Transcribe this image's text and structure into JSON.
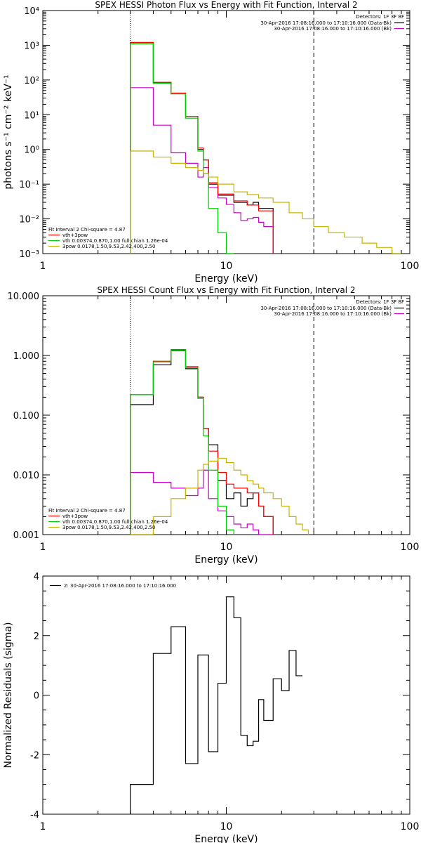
{
  "chart_data": [
    {
      "type": "line",
      "title": "SPEX HESSI Photon Flux vs Energy with Fit Function, Interval 2",
      "xlabel": "Energy (keV)",
      "ylabel": "photons s⁻¹ cm⁻² keV⁻¹",
      "xscale": "log",
      "yscale": "log",
      "xlim": [
        1,
        100
      ],
      "ylim": [
        0.001,
        10000
      ],
      "xticks": [
        {
          "v": 1,
          "label": "1"
        },
        {
          "v": 10,
          "label": "10"
        },
        {
          "v": 100,
          "label": "100"
        }
      ],
      "yticks": [
        {
          "v": 0.001,
          "label": "10⁻³"
        },
        {
          "v": 0.01,
          "label": "10⁻²"
        },
        {
          "v": 0.1,
          "label": "10⁻¹"
        },
        {
          "v": 1,
          "label": "10⁰"
        },
        {
          "v": 10,
          "label": "10¹"
        },
        {
          "v": 100,
          "label": "10²"
        },
        {
          "v": 1000,
          "label": "10³"
        },
        {
          "v": 10000,
          "label": "10⁴"
        }
      ],
      "vlines": [
        {
          "x": 3,
          "style": "dotted"
        },
        {
          "x": 30,
          "style": "dashed"
        }
      ],
      "legend_topright": {
        "header": "Detectors: 1F 3F 8F",
        "entries": [
          {
            "text": "30-Apr-2016 17:08:16.000 to 17:10:16.000 (Data-Bk)",
            "color": "#000000"
          },
          {
            "text": "30-Apr-2016 17:08:16.000 to 17:10:16.000 (Bk)",
            "color": "#cc00cc"
          }
        ]
      },
      "legend_bottomleft": {
        "header": "Fit Interval  2   Chi-square = 4.87",
        "entries": [
          {
            "text": "vth+3pow",
            "color": "#ff0000"
          },
          {
            "text": "vth 0.00374,0.870,1.00  full chian 1.26e-04",
            "color": "#00cc00"
          },
          {
            "text": "3pow 0.0178,1.50,9.53,2.42,400,2.50",
            "color": "#c8b400"
          }
        ]
      },
      "edges": [
        3,
        3.5,
        4,
        4.5,
        5,
        5.5,
        6,
        6.5,
        7,
        7.5,
        8,
        9,
        10,
        11,
        12,
        13,
        14,
        15,
        16,
        18,
        20,
        22,
        24,
        26,
        28,
        30,
        33,
        36,
        40,
        44,
        50,
        55,
        60,
        66,
        72,
        80,
        90
      ],
      "series": [
        {
          "name": "Data-Bk",
          "color": "#000000",
          "values": [
            1200,
            1200,
            85,
            85,
            40,
            40,
            8,
            8,
            1,
            0.5,
            0.1,
            0.048,
            0.048,
            0.03,
            0.03,
            0.025,
            0.03,
            0.02,
            0.02
          ]
        },
        {
          "name": "Bk",
          "color": "#cc00cc",
          "values": [
            60,
            60,
            5,
            5,
            0.8,
            0.8,
            0.4,
            0.4,
            0.16,
            0.3,
            0.08,
            0.04,
            0.026,
            0.015,
            0.009,
            0.01,
            0.011,
            0.008,
            0.006
          ]
        },
        {
          "name": "vth+3pow",
          "color": "#ff0000",
          "values": [
            1200,
            1200,
            85,
            85,
            42,
            42,
            9,
            9,
            1.1,
            0.5,
            0.11,
            0.052,
            0.052,
            0.033,
            0.033,
            0.025,
            0.025,
            0.017,
            0.017
          ]
        },
        {
          "name": "vth",
          "color": "#00cc00",
          "values": [
            1100,
            1100,
            80,
            80,
            40,
            40,
            8,
            8,
            0.9,
            0.2,
            0.02,
            0.004,
            0.0008
          ]
        },
        {
          "name": "3pow",
          "color": "#c8b400",
          "values": [
            0.9,
            0.9,
            0.6,
            0.6,
            0.4,
            0.4,
            0.3,
            0.3,
            0.25,
            0.2,
            0.16,
            0.1,
            0.1,
            0.06,
            0.06,
            0.05,
            0.05,
            0.04,
            0.04,
            0.03,
            0.03,
            0.015,
            0.015,
            0.01,
            0.01,
            0.006,
            0.006,
            0.004,
            0.004,
            0.003,
            0.003,
            0.002,
            0.002,
            0.0015,
            0.0015,
            0.001
          ]
        }
      ]
    },
    {
      "type": "line",
      "title": "SPEX HESSI Count Flux vs Energy with Fit Function, Interval 2",
      "xlabel": "Energy (keV)",
      "ylabel": "",
      "xscale": "log",
      "yscale": "log",
      "xlim": [
        1,
        100
      ],
      "ylim": [
        0.001,
        10
      ],
      "xticks": [
        {
          "v": 1,
          "label": "1"
        },
        {
          "v": 10,
          "label": "10"
        },
        {
          "v": 100,
          "label": "100"
        }
      ],
      "yticks": [
        {
          "v": 0.001,
          "label": "0.001"
        },
        {
          "v": 0.01,
          "label": "0.010"
        },
        {
          "v": 0.1,
          "label": "0.100"
        },
        {
          "v": 1,
          "label": "1.000"
        },
        {
          "v": 10,
          "label": "10.000"
        }
      ],
      "vlines": [
        {
          "x": 3,
          "style": "dotted"
        },
        {
          "x": 30,
          "style": "dashed"
        }
      ],
      "legend_topright": {
        "header": "Detectors: 1F 3F 8F",
        "entries": [
          {
            "text": "30-Apr-2016 17:08:16.000 to 17:10:16.000 (Data-Bk)",
            "color": "#000000"
          },
          {
            "text": "30-Apr-2016 17:08:16.000 to 17:10:16.000 (Bk)",
            "color": "#cc00cc"
          }
        ]
      },
      "legend_bottomleft": {
        "header": "Fit Interval  2   Chi-square = 4.87",
        "entries": [
          {
            "text": "vth+3pow",
            "color": "#ff0000"
          },
          {
            "text": "vth 0.00374,0.870,1.00  full chian 1.26e-04",
            "color": "#00cc00"
          },
          {
            "text": "3pow 0.0178,1.50,9.53,2.42,400,2.50",
            "color": "#c8b400"
          }
        ]
      },
      "edges": [
        3,
        3.5,
        4,
        4.5,
        5,
        5.5,
        6,
        6.5,
        7,
        7.5,
        8,
        9,
        10,
        11,
        12,
        13,
        14,
        15,
        16,
        18,
        20,
        22,
        24,
        26,
        28,
        30,
        33,
        36,
        40,
        44,
        50,
        55,
        60,
        66,
        72,
        80,
        90
      ],
      "series": [
        {
          "name": "Data-Bk",
          "color": "#000000",
          "values": [
            0.15,
            0.15,
            0.7,
            0.7,
            1.2,
            1.2,
            0.6,
            0.6,
            0.2,
            0.06,
            0.032,
            0.008,
            0.004,
            0.005,
            0.003,
            0.004,
            0.005,
            0.003,
            0.002
          ]
        },
        {
          "name": "Bk",
          "color": "#cc00cc",
          "values": [
            0.011,
            0.011,
            0.0075,
            0.0075,
            0.006,
            0.006,
            0.0045,
            0.0045,
            0.006,
            0.012,
            0.004,
            0.0025,
            0.002,
            0.0015,
            0.0013,
            0.0015,
            0.0012,
            0.001,
            0.001
          ]
        },
        {
          "name": "vth+3pow",
          "color": "#ff0000",
          "values": [
            0.22,
            0.22,
            0.8,
            0.8,
            1.25,
            1.25,
            0.65,
            0.65,
            0.2,
            0.06,
            0.025,
            0.011,
            0.007,
            0.006,
            0.006,
            0.005,
            0.005,
            0.003,
            0.002
          ]
        },
        {
          "name": "vth",
          "color": "#00cc00",
          "values": [
            0.22,
            0.22,
            0.78,
            0.78,
            1.22,
            1.22,
            0.62,
            0.62,
            0.19,
            0.045,
            0.012,
            0.003,
            0.0012
          ]
        },
        {
          "name": "3pow",
          "color": "#c8b400",
          "values": [
            0.0008,
            0.0008,
            0.002,
            0.002,
            0.004,
            0.004,
            0.006,
            0.006,
            0.012,
            0.015,
            0.017,
            0.019,
            0.016,
            0.012,
            0.01,
            0.008,
            0.007,
            0.006,
            0.005,
            0.004,
            0.003,
            0.002,
            0.0015,
            0.0012
          ]
        }
      ]
    },
    {
      "type": "line",
      "title": "",
      "xlabel": "Energy (keV)",
      "ylabel": "Normalized Residuals (sigma)",
      "xscale": "log",
      "yscale": "linear",
      "xlim": [
        1,
        100
      ],
      "ylim": [
        -4,
        4
      ],
      "xticks": [
        {
          "v": 1,
          "label": "1"
        },
        {
          "v": 10,
          "label": "10"
        },
        {
          "v": 100,
          "label": "100"
        }
      ],
      "yticks": [
        {
          "v": -4,
          "label": "-4"
        },
        {
          "v": -2,
          "label": "-2"
        },
        {
          "v": 0,
          "label": "0"
        },
        {
          "v": 2,
          "label": "2"
        },
        {
          "v": 4,
          "label": "4"
        }
      ],
      "legend": {
        "text": "2: 30-Apr-2016 17:08:16.000 to 17:10:16.000",
        "color": "#000000"
      },
      "edges": [
        3,
        4,
        5,
        6,
        7,
        8,
        9,
        10,
        11,
        12,
        13,
        14,
        15,
        16,
        18,
        20,
        22,
        24,
        26,
        28,
        30
      ],
      "series": [
        {
          "name": "2: 30-Apr-2016 17:08:16.000 to 17:10:16.000",
          "color": "#000000",
          "values": [
            -3.0,
            1.4,
            2.3,
            -2.3,
            1.35,
            -1.9,
            0.4,
            3.3,
            2.6,
            -1.35,
            -1.7,
            -1.55,
            -0.15,
            -0.85,
            0.55,
            0.15,
            1.5,
            0.65
          ]
        }
      ]
    }
  ]
}
